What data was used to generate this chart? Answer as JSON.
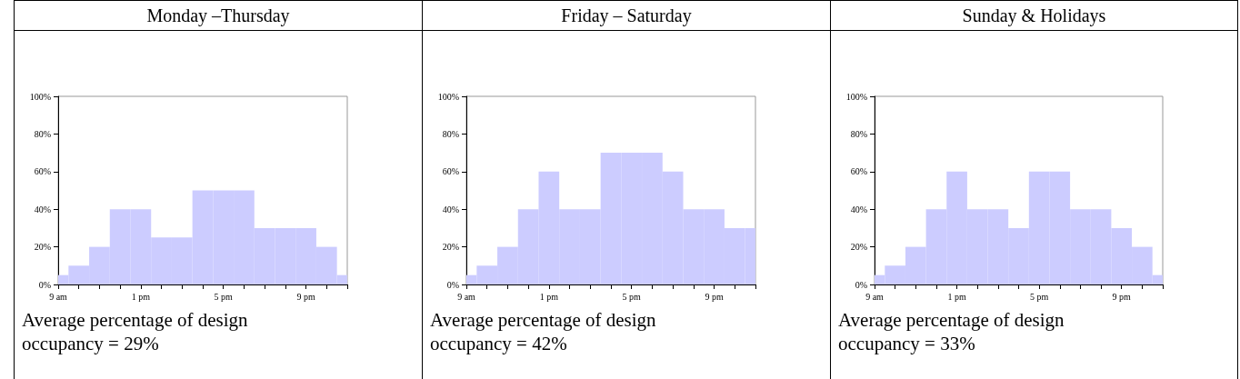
{
  "chart_data": [
    {
      "type": "bar",
      "title": "Monday –Thursday",
      "categories": [
        "9 am",
        null,
        null,
        null,
        "1 pm",
        null,
        null,
        null,
        "5 pm",
        null,
        null,
        null,
        "9 pm",
        null,
        null
      ],
      "values": [
        5,
        10,
        20,
        40,
        40,
        25,
        25,
        50,
        50,
        50,
        30,
        30,
        30,
        20,
        5
      ],
      "color": "#ccccff",
      "ylim": [
        0,
        100
      ],
      "yticks": [
        {
          "value": 0,
          "label": "0%"
        },
        {
          "value": 20,
          "label": "20%"
        },
        {
          "value": 40,
          "label": "40%"
        },
        {
          "value": 60,
          "label": "60%"
        },
        {
          "value": 80,
          "label": "80%"
        },
        {
          "value": 100,
          "label": "100%"
        }
      ],
      "grid": false,
      "annotations": [
        "Average percentage of design occupancy = 29%"
      ]
    },
    {
      "type": "bar",
      "title": "Friday – Saturday",
      "categories": [
        "9 am",
        null,
        null,
        null,
        "1 pm",
        null,
        null,
        null,
        "5 pm",
        null,
        null,
        null,
        "9 pm",
        null,
        null
      ],
      "values": [
        5,
        10,
        20,
        40,
        60,
        40,
        40,
        70,
        70,
        70,
        60,
        40,
        40,
        30,
        30
      ],
      "color": "#ccccff",
      "ylim": [
        0,
        100
      ],
      "yticks": [
        {
          "value": 0,
          "label": "0%"
        },
        {
          "value": 20,
          "label": "20%"
        },
        {
          "value": 40,
          "label": "40%"
        },
        {
          "value": 60,
          "label": "60%"
        },
        {
          "value": 80,
          "label": "80%"
        },
        {
          "value": 100,
          "label": "100%"
        }
      ],
      "grid": false,
      "annotations": [
        "Average percentage of design occupancy = 42%"
      ]
    },
    {
      "type": "bar",
      "title": "Sunday & Holidays",
      "categories": [
        "9 am",
        null,
        null,
        null,
        "1 pm",
        null,
        null,
        null,
        "5 pm",
        null,
        null,
        null,
        "9 pm",
        null,
        null
      ],
      "values": [
        5,
        10,
        20,
        40,
        60,
        40,
        40,
        30,
        60,
        60,
        40,
        40,
        30,
        20,
        5
      ],
      "color": "#ccccff",
      "ylim": [
        0,
        100
      ],
      "yticks": [
        {
          "value": 0,
          "label": "0%"
        },
        {
          "value": 20,
          "label": "20%"
        },
        {
          "value": 40,
          "label": "40%"
        },
        {
          "value": 60,
          "label": "60%"
        },
        {
          "value": 80,
          "label": "80%"
        },
        {
          "value": 100,
          "label": "100%"
        }
      ],
      "grid": false,
      "annotations": [
        "Average percentage of design occupancy = 33%"
      ]
    }
  ]
}
